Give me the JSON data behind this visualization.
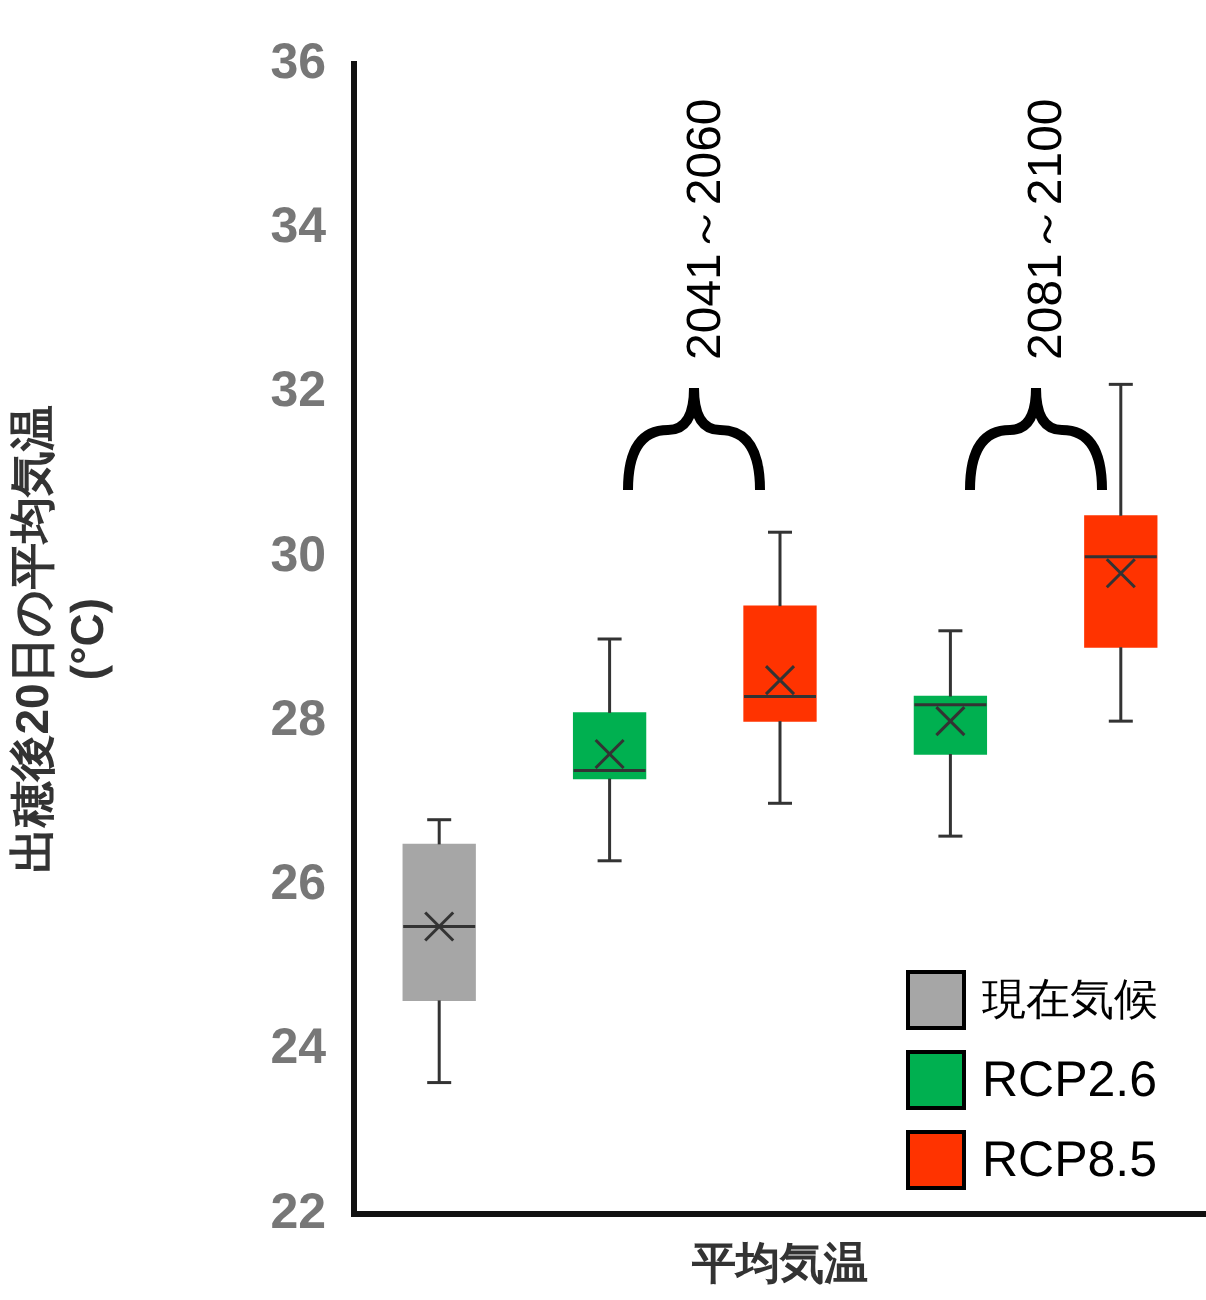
{
  "chart_data": {
    "type": "box",
    "xlabel": "平均気温",
    "ylabel": "出穂後20日の平均気温\n(°C)",
    "categories": [
      null,
      null,
      null,
      null,
      null
    ],
    "ylim": [
      22,
      36
    ],
    "yticks": [
      22,
      24,
      26,
      28,
      30,
      32,
      34,
      36
    ],
    "tick_labels": "y",
    "grid": false,
    "legend": "bottom right",
    "annotations": [
      "2041～2060",
      "2081～2100"
    ],
    "series": [
      {
        "name": "現在気候",
        "color": "#a6a6a6",
        "boxes": [
          {
            "low": 23.6,
            "q1": 24.6,
            "median": 25.5,
            "q3": 26.5,
            "high": 26.8,
            "mean": 25.5
          },
          null,
          null,
          null,
          null
        ]
      },
      {
        "name": "RCP2.6",
        "color": "#00b050",
        "boxes": [
          null,
          {
            "low": 26.3,
            "q1": 27.3,
            "median": 27.4,
            "q3": 28.1,
            "high": 29.0,
            "mean": 27.6
          },
          null,
          {
            "low": 26.6,
            "q1": 27.6,
            "median": 28.2,
            "q3": 28.3,
            "high": 29.1,
            "mean": 28.0
          },
          null
        ]
      },
      {
        "name": "RCP8.5",
        "color": "#ff3300",
        "boxes": [
          null,
          null,
          {
            "low": 27.0,
            "q1": 28.0,
            "median": 28.3,
            "q3": 29.4,
            "high": 30.3,
            "mean": 28.5
          },
          null,
          {
            "low": 28.0,
            "q1": 28.9,
            "median": 30.0,
            "q3": 30.5,
            "high": 32.1,
            "mean": 29.8
          }
        ]
      }
    ]
  }
}
